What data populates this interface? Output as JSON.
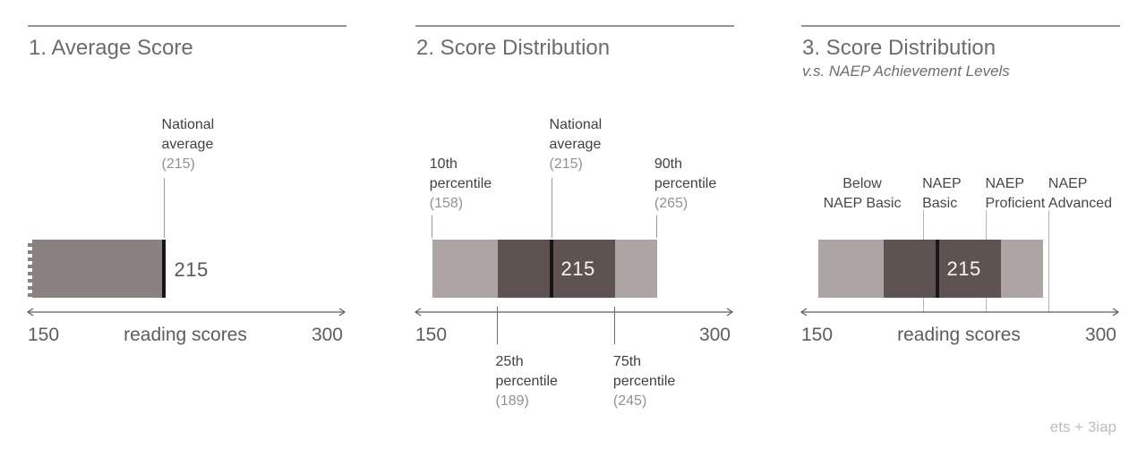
{
  "credit": "ets + 3iap",
  "colors": {
    "bar_mid": "#8a8280",
    "bar_light": "#aca5a3",
    "bar_dark": "#5e5350",
    "median": "#1a1516",
    "rule": "#939393",
    "title": "#6c6c6c",
    "label_dark": "#414141",
    "label_gray": "#929292",
    "axis": "#5d5d5d",
    "leader": "#9a9a9a",
    "level_line": "#b5b5b5",
    "credit": "#bdbdbd"
  },
  "axis": {
    "min": 150,
    "max": 300,
    "min_label": "150",
    "max_label": "300",
    "title": "reading scores"
  },
  "panels": [
    {
      "title": "1. Average Score",
      "subtitle": "",
      "show_axis_title": true,
      "bar": {
        "segments": [
          {
            "from": 150,
            "to": 215,
            "tone": "mid"
          }
        ],
        "median": 215,
        "torn_left": true,
        "value_label": "215",
        "value_label_inside": false
      },
      "annotations": [
        {
          "lines": [
            "National",
            "average"
          ],
          "value": "(215)",
          "x": 215,
          "tier": "high"
        }
      ],
      "bottom_annotations": [],
      "levels": []
    },
    {
      "title": "2. Score Distribution",
      "subtitle": "",
      "show_axis_title": false,
      "bar": {
        "segments": [
          {
            "from": 158,
            "to": 189,
            "tone": "light"
          },
          {
            "from": 189,
            "to": 245,
            "tone": "dark"
          },
          {
            "from": 245,
            "to": 265,
            "tone": "light"
          }
        ],
        "median": 215,
        "torn_left": false,
        "value_label": "215",
        "value_label_inside": true
      },
      "annotations": [
        {
          "lines": [
            "10th",
            "percentile"
          ],
          "value": "(158)",
          "x": 158,
          "tier": "low"
        },
        {
          "lines": [
            "National",
            "average"
          ],
          "value": "(215)",
          "x": 215,
          "tier": "high"
        },
        {
          "lines": [
            "90th",
            "percentile"
          ],
          "value": "(265)",
          "x": 265,
          "tier": "low"
        }
      ],
      "bottom_annotations": [
        {
          "lines": [
            "25th",
            "percentile"
          ],
          "value": "(189)",
          "x": 189
        },
        {
          "lines": [
            "75th",
            "percentile"
          ],
          "value": "(245)",
          "x": 245
        }
      ],
      "levels": []
    },
    {
      "title": "3. Score Distribution",
      "subtitle": "v.s. NAEP Achievement Levels",
      "show_axis_title": true,
      "bar": {
        "segments": [
          {
            "from": 158,
            "to": 189,
            "tone": "light"
          },
          {
            "from": 189,
            "to": 245,
            "tone": "dark"
          },
          {
            "from": 245,
            "to": 265,
            "tone": "light"
          }
        ],
        "median": 215,
        "torn_left": false,
        "value_label": "215",
        "value_label_inside": true
      },
      "annotations": [],
      "bottom_annotations": [],
      "levels": [
        {
          "lines": [
            "Below",
            "NAEP Basic"
          ],
          "x": 179,
          "align": "center",
          "line": false
        },
        {
          "lines": [
            "NAEP",
            "Basic"
          ],
          "x": 208,
          "align": "left",
          "line": true
        },
        {
          "lines": [
            "NAEP",
            "Proficient"
          ],
          "x": 238,
          "align": "left",
          "line": true
        },
        {
          "lines": [
            "NAEP",
            "Advanced"
          ],
          "x": 268,
          "align": "left",
          "line": true
        }
      ]
    }
  ],
  "chart_data": [
    {
      "type": "bar",
      "title": "1. Average Score",
      "xlabel": "reading scores",
      "xlim": [
        150,
        300
      ],
      "series": [
        {
          "name": "National average",
          "value": 215
        }
      ],
      "annotations": [
        "National average (215)"
      ]
    },
    {
      "type": "bar",
      "title": "2. Score Distribution",
      "xlabel": "reading scores",
      "xlim": [
        150,
        300
      ],
      "distribution": {
        "p10": 158,
        "p25": 189,
        "average": 215,
        "p75": 245,
        "p90": 265
      },
      "annotations": [
        "10th percentile (158)",
        "25th percentile (189)",
        "National average (215)",
        "75th percentile (245)",
        "90th percentile (265)"
      ]
    },
    {
      "type": "bar",
      "title": "3. Score Distribution v.s. NAEP Achievement Levels",
      "xlabel": "reading scores",
      "xlim": [
        150,
        300
      ],
      "distribution": {
        "p10": 158,
        "p25": 189,
        "average": 215,
        "p75": 245,
        "p90": 265
      },
      "naep_levels": {
        "basic": 208,
        "proficient": 238,
        "advanced": 268
      },
      "annotations": [
        "Below NAEP Basic",
        "NAEP Basic",
        "NAEP Proficient",
        "NAEP Advanced"
      ]
    }
  ]
}
